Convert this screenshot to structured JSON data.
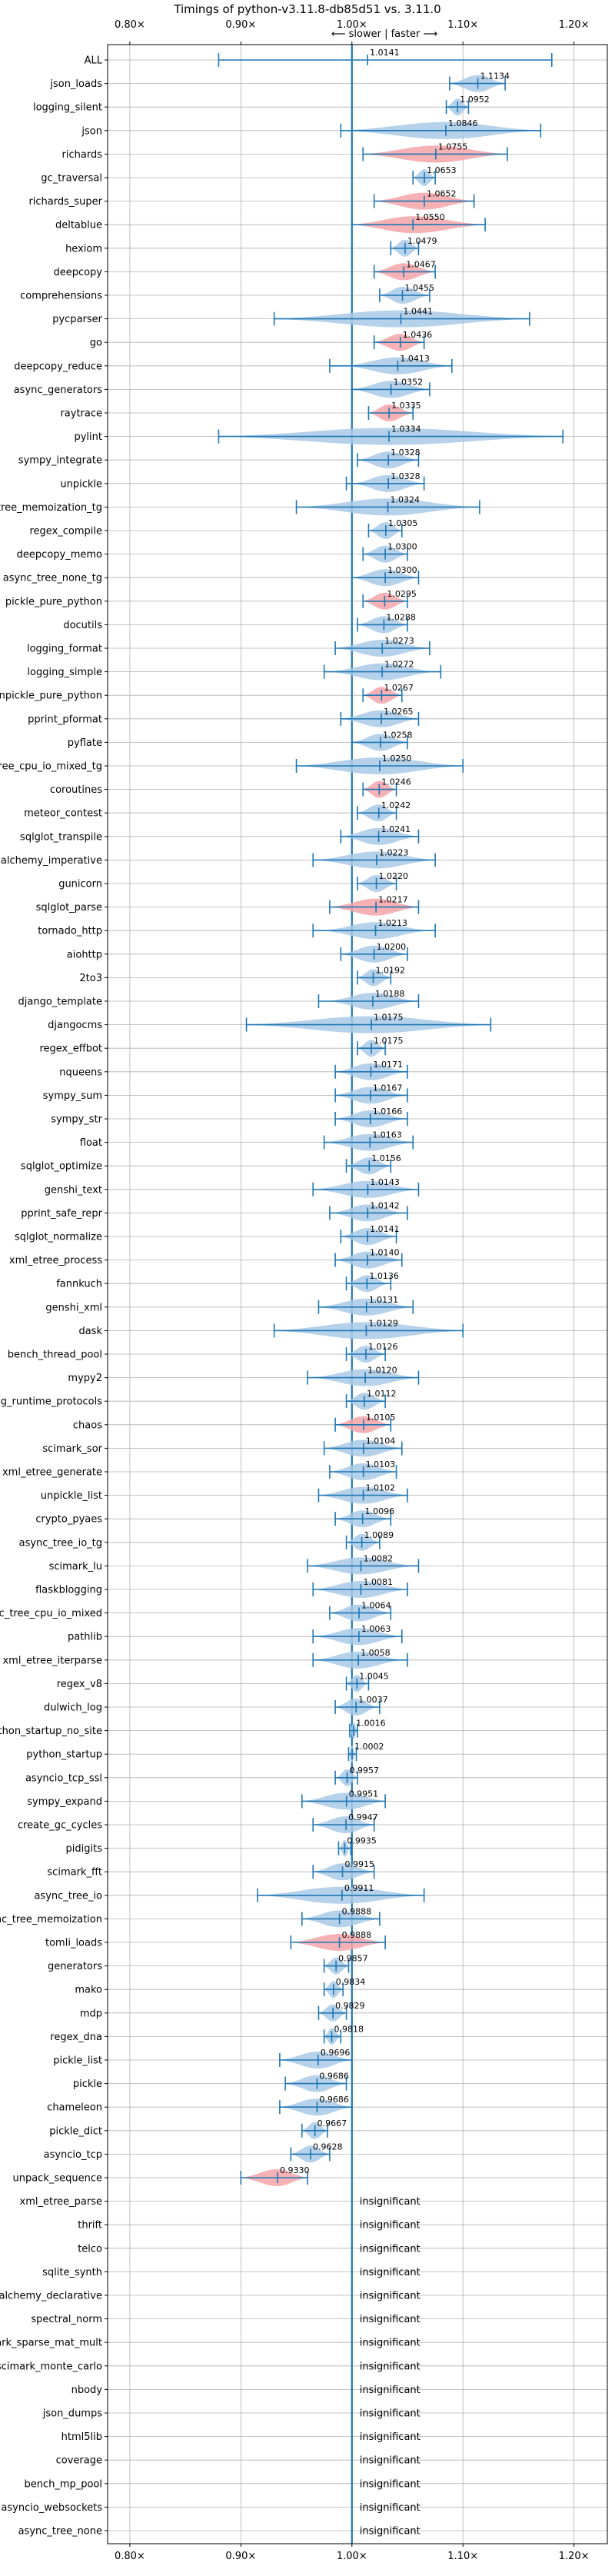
{
  "chart_data": {
    "type": "violin",
    "title": "Timings of python-v3.11.8-db85d51 vs. 3.11.0",
    "direction_label": "⟵ slower | faster ⟶",
    "xlim": [
      0.78,
      1.23
    ],
    "x_ticks": [
      {
        "value": 0.8,
        "label": "0.80×"
      },
      {
        "value": 0.9,
        "label": "0.90×"
      },
      {
        "value": 1.0,
        "label": "1.00×"
      },
      {
        "value": 1.1,
        "label": "1.10×"
      },
      {
        "value": 1.2,
        "label": "1.20×"
      }
    ],
    "grid": true,
    "colors": {
      "normal": "#1f77b4",
      "violin_normal": "#a9c9e6",
      "violin_highlight": "#f4a3a8",
      "reference_line": "#1f77b4",
      "grid": "#b0b0b0",
      "text": "#000000"
    },
    "insignificant_label": "insignificant",
    "benchmarks": [
      {
        "name": "ALL",
        "value": 1.0141,
        "label": "1.0141",
        "lo": 0.88,
        "hi": 1.18,
        "spread": 0.0,
        "highlight": false
      },
      {
        "name": "json_loads",
        "value": 1.1134,
        "label": "1.1134",
        "lo": 1.088,
        "hi": 1.138,
        "spread": 0.025,
        "highlight": false
      },
      {
        "name": "logging_silent",
        "value": 1.0952,
        "label": "1.0952",
        "lo": 1.085,
        "hi": 1.105,
        "spread": 0.01,
        "highlight": false
      },
      {
        "name": "json",
        "value": 1.0846,
        "label": "1.0846",
        "lo": 0.99,
        "hi": 1.17,
        "spread": 0.07,
        "highlight": false
      },
      {
        "name": "richards",
        "value": 1.0755,
        "label": "1.0755",
        "lo": 1.01,
        "hi": 1.14,
        "spread": 0.06,
        "highlight": true
      },
      {
        "name": "gc_traversal",
        "value": 1.0653,
        "label": "1.0653",
        "lo": 1.055,
        "hi": 1.075,
        "spread": 0.008,
        "highlight": false
      },
      {
        "name": "richards_super",
        "value": 1.0652,
        "label": "1.0652",
        "lo": 1.02,
        "hi": 1.11,
        "spread": 0.04,
        "highlight": true
      },
      {
        "name": "deltablue",
        "value": 1.055,
        "label": "1.0550",
        "lo": 1.0,
        "hi": 1.12,
        "spread": 0.06,
        "highlight": true
      },
      {
        "name": "hexiom",
        "value": 1.0479,
        "label": "1.0479",
        "lo": 1.035,
        "hi": 1.06,
        "spread": 0.01,
        "highlight": false
      },
      {
        "name": "deepcopy",
        "value": 1.0467,
        "label": "1.0467",
        "lo": 1.02,
        "hi": 1.075,
        "spread": 0.02,
        "highlight": true
      },
      {
        "name": "comprehensions",
        "value": 1.0455,
        "label": "1.0455",
        "lo": 1.025,
        "hi": 1.07,
        "spread": 0.02,
        "highlight": false
      },
      {
        "name": "pycparser",
        "value": 1.0441,
        "label": "1.0441",
        "lo": 0.93,
        "hi": 1.16,
        "spread": 0.1,
        "highlight": false
      },
      {
        "name": "go",
        "value": 1.0436,
        "label": "1.0436",
        "lo": 1.02,
        "hi": 1.065,
        "spread": 0.02,
        "highlight": true
      },
      {
        "name": "deepcopy_reduce",
        "value": 1.0413,
        "label": "1.0413",
        "lo": 0.98,
        "hi": 1.09,
        "spread": 0.03,
        "highlight": false
      },
      {
        "name": "async_generators",
        "value": 1.0352,
        "label": "1.0352",
        "lo": 1.0,
        "hi": 1.07,
        "spread": 0.025,
        "highlight": false
      },
      {
        "name": "raytrace",
        "value": 1.0335,
        "label": "1.0335",
        "lo": 1.015,
        "hi": 1.055,
        "spread": 0.02,
        "highlight": true
      },
      {
        "name": "pylint",
        "value": 1.0334,
        "label": "1.0334",
        "lo": 0.88,
        "hi": 1.19,
        "spread": 0.1,
        "highlight": false
      },
      {
        "name": "sympy_integrate",
        "value": 1.0328,
        "label": "1.0328",
        "lo": 1.005,
        "hi": 1.06,
        "spread": 0.02,
        "highlight": false
      },
      {
        "name": "unpickle",
        "value": 1.0328,
        "label": "1.0328",
        "lo": 0.995,
        "hi": 1.065,
        "spread": 0.02,
        "highlight": false
      },
      {
        "name": "async_tree_memoization_tg",
        "value": 1.0324,
        "label": "1.0324",
        "lo": 0.95,
        "hi": 1.115,
        "spread": 0.05,
        "highlight": false
      },
      {
        "name": "regex_compile",
        "value": 1.0305,
        "label": "1.0305",
        "lo": 1.015,
        "hi": 1.045,
        "spread": 0.012,
        "highlight": false
      },
      {
        "name": "deepcopy_memo",
        "value": 1.03,
        "label": "1.0300",
        "lo": 1.01,
        "hi": 1.05,
        "spread": 0.015,
        "highlight": false
      },
      {
        "name": "async_tree_none_tg",
        "value": 1.03,
        "label": "1.0300",
        "lo": 1.0,
        "hi": 1.06,
        "spread": 0.025,
        "highlight": false
      },
      {
        "name": "pickle_pure_python",
        "value": 1.0295,
        "label": "1.0295",
        "lo": 1.01,
        "hi": 1.05,
        "spread": 0.015,
        "highlight": true
      },
      {
        "name": "docutils",
        "value": 1.0288,
        "label": "1.0288",
        "lo": 1.005,
        "hi": 1.05,
        "spread": 0.015,
        "highlight": false
      },
      {
        "name": "logging_format",
        "value": 1.0273,
        "label": "1.0273",
        "lo": 0.985,
        "hi": 1.07,
        "spread": 0.03,
        "highlight": false
      },
      {
        "name": "logging_simple",
        "value": 1.0272,
        "label": "1.0272",
        "lo": 0.975,
        "hi": 1.08,
        "spread": 0.03,
        "highlight": false
      },
      {
        "name": "unpickle_pure_python",
        "value": 1.0267,
        "label": "1.0267",
        "lo": 1.01,
        "hi": 1.045,
        "spread": 0.012,
        "highlight": true
      },
      {
        "name": "pprint_pformat",
        "value": 1.0265,
        "label": "1.0265",
        "lo": 0.99,
        "hi": 1.06,
        "spread": 0.025,
        "highlight": false
      },
      {
        "name": "pyflate",
        "value": 1.0258,
        "label": "1.0258",
        "lo": 1.0,
        "hi": 1.05,
        "spread": 0.02,
        "highlight": false
      },
      {
        "name": "async_tree_cpu_io_mixed_tg",
        "value": 1.025,
        "label": "1.0250",
        "lo": 0.95,
        "hi": 1.1,
        "spread": 0.05,
        "highlight": false
      },
      {
        "name": "coroutines",
        "value": 1.0246,
        "label": "1.0246",
        "lo": 1.01,
        "hi": 1.04,
        "spread": 0.01,
        "highlight": true
      },
      {
        "name": "meteor_contest",
        "value": 1.0242,
        "label": "1.0242",
        "lo": 1.005,
        "hi": 1.04,
        "spread": 0.012,
        "highlight": false
      },
      {
        "name": "sqlglot_transpile",
        "value": 1.0241,
        "label": "1.0241",
        "lo": 0.99,
        "hi": 1.06,
        "spread": 0.025,
        "highlight": false
      },
      {
        "name": "sqlalchemy_imperative",
        "value": 1.0223,
        "label": "1.0223",
        "lo": 0.965,
        "hi": 1.075,
        "spread": 0.035,
        "highlight": false
      },
      {
        "name": "gunicorn",
        "value": 1.022,
        "label": "1.0220",
        "lo": 1.005,
        "hi": 1.04,
        "spread": 0.012,
        "highlight": false
      },
      {
        "name": "sqlglot_parse",
        "value": 1.0217,
        "label": "1.0217",
        "lo": 0.98,
        "hi": 1.06,
        "spread": 0.035,
        "highlight": true
      },
      {
        "name": "tornado_http",
        "value": 1.0213,
        "label": "1.0213",
        "lo": 0.965,
        "hi": 1.075,
        "spread": 0.03,
        "highlight": false
      },
      {
        "name": "aiohttp",
        "value": 1.02,
        "label": "1.0200",
        "lo": 0.99,
        "hi": 1.05,
        "spread": 0.02,
        "highlight": false
      },
      {
        "name": "2to3",
        "value": 1.0192,
        "label": "1.0192",
        "lo": 1.005,
        "hi": 1.035,
        "spread": 0.01,
        "highlight": false
      },
      {
        "name": "django_template",
        "value": 1.0188,
        "label": "1.0188",
        "lo": 0.97,
        "hi": 1.06,
        "spread": 0.025,
        "highlight": false
      },
      {
        "name": "djangocms",
        "value": 1.0175,
        "label": "1.0175",
        "lo": 0.905,
        "hi": 1.125,
        "spread": 0.08,
        "highlight": false
      },
      {
        "name": "regex_effbot",
        "value": 1.0175,
        "label": "1.0175",
        "lo": 1.005,
        "hi": 1.03,
        "spread": 0.01,
        "highlight": false
      },
      {
        "name": "nqueens",
        "value": 1.0171,
        "label": "1.0171",
        "lo": 0.985,
        "hi": 1.05,
        "spread": 0.02,
        "highlight": false
      },
      {
        "name": "sympy_sum",
        "value": 1.0167,
        "label": "1.0167",
        "lo": 0.985,
        "hi": 1.05,
        "spread": 0.02,
        "highlight": false
      },
      {
        "name": "sympy_str",
        "value": 1.0166,
        "label": "1.0166",
        "lo": 0.985,
        "hi": 1.05,
        "spread": 0.02,
        "highlight": false
      },
      {
        "name": "float",
        "value": 1.0163,
        "label": "1.0163",
        "lo": 0.975,
        "hi": 1.055,
        "spread": 0.025,
        "highlight": false
      },
      {
        "name": "sqlglot_optimize",
        "value": 1.0156,
        "label": "1.0156",
        "lo": 0.995,
        "hi": 1.035,
        "spread": 0.015,
        "highlight": false
      },
      {
        "name": "genshi_text",
        "value": 1.0143,
        "label": "1.0143",
        "lo": 0.965,
        "hi": 1.06,
        "spread": 0.03,
        "highlight": false
      },
      {
        "name": "pprint_safe_repr",
        "value": 1.0142,
        "label": "1.0142",
        "lo": 0.98,
        "hi": 1.05,
        "spread": 0.02,
        "highlight": false
      },
      {
        "name": "sqlglot_normalize",
        "value": 1.0141,
        "label": "1.0141",
        "lo": 0.99,
        "hi": 1.04,
        "spread": 0.018,
        "highlight": false
      },
      {
        "name": "xml_etree_process",
        "value": 1.014,
        "label": "1.0140",
        "lo": 0.985,
        "hi": 1.045,
        "spread": 0.02,
        "highlight": false
      },
      {
        "name": "fannkuch",
        "value": 1.0136,
        "label": "1.0136",
        "lo": 0.995,
        "hi": 1.035,
        "spread": 0.012,
        "highlight": false
      },
      {
        "name": "genshi_xml",
        "value": 1.0131,
        "label": "1.0131",
        "lo": 0.97,
        "hi": 1.055,
        "spread": 0.03,
        "highlight": false
      },
      {
        "name": "dask",
        "value": 1.0129,
        "label": "1.0129",
        "lo": 0.93,
        "hi": 1.1,
        "spread": 0.06,
        "highlight": false
      },
      {
        "name": "bench_thread_pool",
        "value": 1.0126,
        "label": "1.0126",
        "lo": 0.995,
        "hi": 1.03,
        "spread": 0.012,
        "highlight": false
      },
      {
        "name": "mypy2",
        "value": 1.012,
        "label": "1.0120",
        "lo": 0.96,
        "hi": 1.06,
        "spread": 0.03,
        "highlight": false
      },
      {
        "name": "typing_runtime_protocols",
        "value": 1.0112,
        "label": "1.0112",
        "lo": 0.995,
        "hi": 1.03,
        "spread": 0.012,
        "highlight": false
      },
      {
        "name": "chaos",
        "value": 1.0105,
        "label": "1.0105",
        "lo": 0.985,
        "hi": 1.035,
        "spread": 0.02,
        "highlight": true
      },
      {
        "name": "scimark_sor",
        "value": 1.0104,
        "label": "1.0104",
        "lo": 0.975,
        "hi": 1.045,
        "spread": 0.025,
        "highlight": false
      },
      {
        "name": "xml_etree_generate",
        "value": 1.0103,
        "label": "1.0103",
        "lo": 0.98,
        "hi": 1.04,
        "spread": 0.02,
        "highlight": false
      },
      {
        "name": "unpickle_list",
        "value": 1.0102,
        "label": "1.0102",
        "lo": 0.97,
        "hi": 1.05,
        "spread": 0.025,
        "highlight": false
      },
      {
        "name": "crypto_pyaes",
        "value": 1.0096,
        "label": "1.0096",
        "lo": 0.985,
        "hi": 1.035,
        "spread": 0.015,
        "highlight": false
      },
      {
        "name": "async_tree_io_tg",
        "value": 1.0089,
        "label": "1.0089",
        "lo": 0.995,
        "hi": 1.025,
        "spread": 0.012,
        "highlight": false
      },
      {
        "name": "scimark_lu",
        "value": 1.0082,
        "label": "1.0082",
        "lo": 0.96,
        "hi": 1.06,
        "spread": 0.03,
        "highlight": false
      },
      {
        "name": "flaskblogging",
        "value": 1.0081,
        "label": "1.0081",
        "lo": 0.965,
        "hi": 1.05,
        "spread": 0.03,
        "highlight": false
      },
      {
        "name": "async_tree_cpu_io_mixed",
        "value": 1.0064,
        "label": "1.0064",
        "lo": 0.98,
        "hi": 1.035,
        "spread": 0.018,
        "highlight": false
      },
      {
        "name": "pathlib",
        "value": 1.0063,
        "label": "1.0063",
        "lo": 0.965,
        "hi": 1.045,
        "spread": 0.025,
        "highlight": false
      },
      {
        "name": "xml_etree_iterparse",
        "value": 1.0058,
        "label": "1.0058",
        "lo": 0.965,
        "hi": 1.05,
        "spread": 0.025,
        "highlight": false
      },
      {
        "name": "regex_v8",
        "value": 1.0045,
        "label": "1.0045",
        "lo": 0.995,
        "hi": 1.015,
        "spread": 0.006,
        "highlight": false
      },
      {
        "name": "dulwich_log",
        "value": 1.0037,
        "label": "1.0037",
        "lo": 0.985,
        "hi": 1.025,
        "spread": 0.012,
        "highlight": false
      },
      {
        "name": "python_startup_no_site",
        "value": 1.0016,
        "label": "1.0016",
        "lo": 0.998,
        "hi": 1.005,
        "spread": 0.002,
        "highlight": false
      },
      {
        "name": "python_startup",
        "value": 1.0002,
        "label": "1.0002",
        "lo": 0.997,
        "hi": 1.004,
        "spread": 0.002,
        "highlight": false
      },
      {
        "name": "asyncio_tcp_ssl",
        "value": 0.9957,
        "label": "0.9957",
        "lo": 0.985,
        "hi": 1.005,
        "spread": 0.006,
        "highlight": false
      },
      {
        "name": "sympy_expand",
        "value": 0.9951,
        "label": "0.9951",
        "lo": 0.955,
        "hi": 1.03,
        "spread": 0.025,
        "highlight": false
      },
      {
        "name": "create_gc_cycles",
        "value": 0.9947,
        "label": "0.9947",
        "lo": 0.965,
        "hi": 1.02,
        "spread": 0.02,
        "highlight": false
      },
      {
        "name": "pidigits",
        "value": 0.9935,
        "label": "0.9935",
        "lo": 0.988,
        "hi": 0.999,
        "spread": 0.003,
        "highlight": false
      },
      {
        "name": "scimark_fft",
        "value": 0.9915,
        "label": "0.9915",
        "lo": 0.965,
        "hi": 1.02,
        "spread": 0.02,
        "highlight": false
      },
      {
        "name": "async_tree_io",
        "value": 0.9911,
        "label": "0.9911",
        "lo": 0.915,
        "hi": 1.065,
        "spread": 0.05,
        "highlight": false
      },
      {
        "name": "async_tree_memoization",
        "value": 0.9888,
        "label": "0.9888",
        "lo": 0.955,
        "hi": 1.025,
        "spread": 0.025,
        "highlight": false
      },
      {
        "name": "tomli_loads",
        "value": 0.9888,
        "label": "0.9888",
        "lo": 0.945,
        "hi": 1.03,
        "spread": 0.035,
        "highlight": true
      },
      {
        "name": "generators",
        "value": 0.9857,
        "label": "0.9857",
        "lo": 0.975,
        "hi": 0.997,
        "spread": 0.008,
        "highlight": false
      },
      {
        "name": "mako",
        "value": 0.9834,
        "label": "0.9834",
        "lo": 0.975,
        "hi": 0.992,
        "spread": 0.006,
        "highlight": false
      },
      {
        "name": "mdp",
        "value": 0.9829,
        "label": "0.9829",
        "lo": 0.97,
        "hi": 0.995,
        "spread": 0.01,
        "highlight": false
      },
      {
        "name": "regex_dna",
        "value": 0.9818,
        "label": "0.9818",
        "lo": 0.975,
        "hi": 0.99,
        "spread": 0.005,
        "highlight": false
      },
      {
        "name": "pickle_list",
        "value": 0.9696,
        "label": "0.9696",
        "lo": 0.935,
        "hi": 1.0,
        "spread": 0.025,
        "highlight": false
      },
      {
        "name": "pickle",
        "value": 0.9686,
        "label": "0.9686",
        "lo": 0.94,
        "hi": 0.995,
        "spread": 0.02,
        "highlight": false
      },
      {
        "name": "chameleon",
        "value": 0.9686,
        "label": "0.9686",
        "lo": 0.935,
        "hi": 1.0,
        "spread": 0.025,
        "highlight": false
      },
      {
        "name": "pickle_dict",
        "value": 0.9667,
        "label": "0.9667",
        "lo": 0.955,
        "hi": 0.978,
        "spread": 0.008,
        "highlight": false
      },
      {
        "name": "asyncio_tcp",
        "value": 0.9628,
        "label": "0.9628",
        "lo": 0.945,
        "hi": 0.98,
        "spread": 0.012,
        "highlight": false
      },
      {
        "name": "unpack_sequence",
        "value": 0.933,
        "label": "0.9330",
        "lo": 0.9,
        "hi": 0.96,
        "spread": 0.022,
        "highlight": true
      },
      {
        "name": "xml_etree_parse",
        "insignificant": true
      },
      {
        "name": "thrift",
        "insignificant": true
      },
      {
        "name": "telco",
        "insignificant": true
      },
      {
        "name": "sqlite_synth",
        "insignificant": true
      },
      {
        "name": "sqlalchemy_declarative",
        "insignificant": true
      },
      {
        "name": "spectral_norm",
        "insignificant": true
      },
      {
        "name": "scimark_sparse_mat_mult",
        "insignificant": true
      },
      {
        "name": "scimark_monte_carlo",
        "insignificant": true
      },
      {
        "name": "nbody",
        "insignificant": true
      },
      {
        "name": "json_dumps",
        "insignificant": true
      },
      {
        "name": "html5lib",
        "insignificant": true
      },
      {
        "name": "coverage",
        "insignificant": true
      },
      {
        "name": "bench_mp_pool",
        "insignificant": true
      },
      {
        "name": "asyncio_websockets",
        "insignificant": true
      },
      {
        "name": "async_tree_none",
        "insignificant": true
      }
    ]
  }
}
